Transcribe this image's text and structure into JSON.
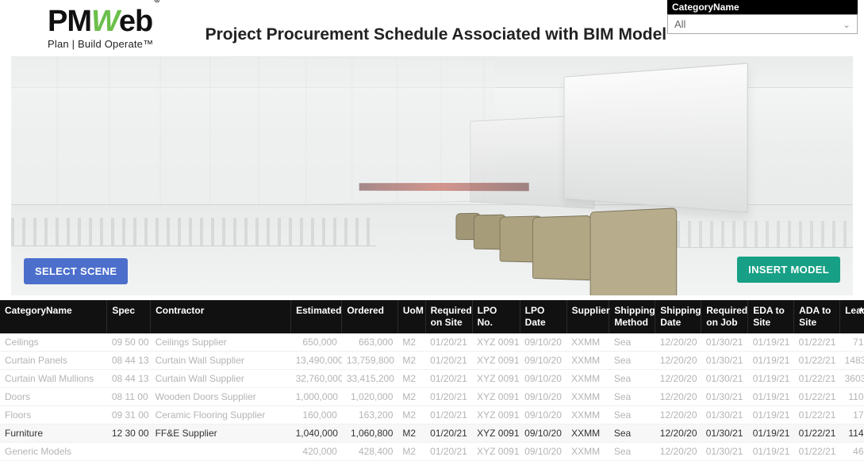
{
  "logo": {
    "prefix": "PM",
    "w": "W",
    "suffix": "eb",
    "registered": "®",
    "tagline": "Plan | Build  Operate",
    "trademark": "™"
  },
  "page_title": "Project Procurement Schedule Associated with BIM Model",
  "filter": {
    "label": "CategoryName",
    "selected": "All"
  },
  "buttons": {
    "select_scene": "SELECT SCENE",
    "insert_model": "INSERT MODEL"
  },
  "colors": {
    "select_btn": "#4c6fcc",
    "insert_btn": "#17a085",
    "logo_accent": "#6bbf4a",
    "header_bg": "#111111",
    "highlight_row": "#f7f7f7"
  },
  "table": {
    "columns": [
      {
        "key": "category",
        "label": "CategoryName",
        "width": 128,
        "align": "left"
      },
      {
        "key": "spec",
        "label": "Spec",
        "width": 52,
        "align": "left"
      },
      {
        "key": "contractor",
        "label": "Contractor",
        "width": 168,
        "align": "left"
      },
      {
        "key": "estimated",
        "label": "Estimated",
        "width": 61,
        "align": "right"
      },
      {
        "key": "ordered",
        "label": "Ordered",
        "width": 67,
        "align": "right"
      },
      {
        "key": "uom",
        "label": "UoM",
        "width": 33,
        "align": "left"
      },
      {
        "key": "req_site",
        "label": "Required on Site",
        "width": 56,
        "align": "left"
      },
      {
        "key": "lpo_no",
        "label": "LPO No.",
        "width": 57,
        "align": "left"
      },
      {
        "key": "lpo_date",
        "label": "LPO Date",
        "width": 56,
        "align": "left"
      },
      {
        "key": "supplier",
        "label": "Supplier",
        "width": 51,
        "align": "left"
      },
      {
        "key": "ship_method",
        "label": "Shipping Method",
        "width": 55,
        "align": "left"
      },
      {
        "key": "ship_date",
        "label": "Shipping Date",
        "width": 55,
        "align": "left"
      },
      {
        "key": "req_job",
        "label": "Required on Job",
        "width": 56,
        "align": "left"
      },
      {
        "key": "eda",
        "label": "EDA to Site",
        "width": 55,
        "align": "left"
      },
      {
        "key": "ada",
        "label": "ADA to Site",
        "width": 55,
        "align": "left"
      },
      {
        "key": "lead",
        "label": "Lead",
        "width": 34,
        "align": "right"
      }
    ],
    "rows": [
      {
        "category": "Ceilings",
        "spec": "09 50 00",
        "contractor": "Ceilings Supplier",
        "estimated": "650,000",
        "ordered": "663,000",
        "uom": "M2",
        "req_site": "01/20/21",
        "lpo_no": "XYZ 0091",
        "lpo_date": "09/10/20",
        "supplier": "XXMM",
        "ship_method": "Sea",
        "ship_date": "12/20/20",
        "req_job": "01/30/21",
        "eda": "01/19/21",
        "ada": "01/22/21",
        "lead": "71",
        "dim": true
      },
      {
        "category": "Curtain Panels",
        "spec": "08 44 13",
        "contractor": "Curtain Wall Supplier",
        "estimated": "13,490,000",
        "ordered": "13,759,800",
        "uom": "M2",
        "req_site": "01/20/21",
        "lpo_no": "XYZ 0091",
        "lpo_date": "09/10/20",
        "supplier": "XXMM",
        "ship_method": "Sea",
        "ship_date": "12/20/20",
        "req_job": "01/30/21",
        "eda": "01/19/21",
        "ada": "01/22/21",
        "lead": "1483",
        "dim": true
      },
      {
        "category": "Curtain Wall Mullions",
        "spec": "08 44 13",
        "contractor": "Curtain Wall Supplier",
        "estimated": "32,760,000",
        "ordered": "33,415,200",
        "uom": "M2",
        "req_site": "01/20/21",
        "lpo_no": "XYZ 0091",
        "lpo_date": "09/10/20",
        "supplier": "XXMM",
        "ship_method": "Sea",
        "ship_date": "12/20/20",
        "req_job": "01/30/21",
        "eda": "01/19/21",
        "ada": "01/22/21",
        "lead": "3603",
        "dim": true
      },
      {
        "category": "Doors",
        "spec": "08 11 00",
        "contractor": "Wooden Doors Supplier",
        "estimated": "1,000,000",
        "ordered": "1,020,000",
        "uom": "M2",
        "req_site": "01/20/21",
        "lpo_no": "XYZ 0091",
        "lpo_date": "09/10/20",
        "supplier": "XXMM",
        "ship_method": "Sea",
        "ship_date": "12/20/20",
        "req_job": "01/30/21",
        "eda": "01/19/21",
        "ada": "01/22/21",
        "lead": "110",
        "dim": true
      },
      {
        "category": "Floors",
        "spec": "09 31 00",
        "contractor": "Ceramic Flooring Supplier",
        "estimated": "160,000",
        "ordered": "163,200",
        "uom": "M2",
        "req_site": "01/20/21",
        "lpo_no": "XYZ 0091",
        "lpo_date": "09/10/20",
        "supplier": "XXMM",
        "ship_method": "Sea",
        "ship_date": "12/20/20",
        "req_job": "01/30/21",
        "eda": "01/19/21",
        "ada": "01/22/21",
        "lead": "17",
        "dim": true
      },
      {
        "category": "Furniture",
        "spec": "12 30 00",
        "contractor": "FF&E Supplier",
        "estimated": "1,040,000",
        "ordered": "1,060,800",
        "uom": "M2",
        "req_site": "01/20/21",
        "lpo_no": "XYZ 0091",
        "lpo_date": "09/10/20",
        "supplier": "XXMM",
        "ship_method": "Sea",
        "ship_date": "12/20/20",
        "req_job": "01/30/21",
        "eda": "01/19/21",
        "ada": "01/22/21",
        "lead": "114",
        "highlight": true
      },
      {
        "category": "Generic Models",
        "spec": "",
        "contractor": "",
        "estimated": "420,000",
        "ordered": "428,400",
        "uom": "M2",
        "req_site": "01/20/21",
        "lpo_no": "XYZ 0091",
        "lpo_date": "09/10/20",
        "supplier": "XXMM",
        "ship_method": "Sea",
        "ship_date": "12/20/20",
        "req_job": "01/30/21",
        "eda": "01/19/21",
        "ada": "01/22/21",
        "lead": "46",
        "dim": true
      }
    ]
  }
}
